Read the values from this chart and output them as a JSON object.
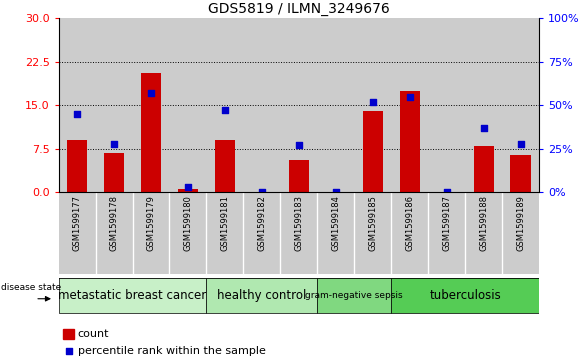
{
  "title": "GDS5819 / ILMN_3249676",
  "samples": [
    "GSM1599177",
    "GSM1599178",
    "GSM1599179",
    "GSM1599180",
    "GSM1599181",
    "GSM1599182",
    "GSM1599183",
    "GSM1599184",
    "GSM1599185",
    "GSM1599186",
    "GSM1599187",
    "GSM1599188",
    "GSM1599189"
  ],
  "counts": [
    9.0,
    6.8,
    20.5,
    0.5,
    9.0,
    0.0,
    5.5,
    0.0,
    14.0,
    17.5,
    0.0,
    8.0,
    6.5
  ],
  "percentiles": [
    45,
    28,
    57,
    3,
    47,
    0,
    27,
    0,
    52,
    55,
    0,
    37,
    28
  ],
  "groups": [
    {
      "name": "metastatic breast cancer",
      "start": 0,
      "end": 4,
      "color": "#c8f0c8"
    },
    {
      "name": "healthy control",
      "start": 4,
      "end": 7,
      "color": "#b0e8b0"
    },
    {
      "name": "gram-negative sepsis",
      "start": 7,
      "end": 9,
      "color": "#80d880"
    },
    {
      "name": "tuberculosis",
      "start": 9,
      "end": 13,
      "color": "#55cc55"
    }
  ],
  "ylim_left": [
    0,
    30
  ],
  "ylim_right": [
    0,
    100
  ],
  "yticks_left": [
    0,
    7.5,
    15,
    22.5,
    30
  ],
  "yticks_right": [
    0,
    25,
    50,
    75,
    100
  ],
  "bar_color": "#cc0000",
  "dot_color": "#0000cc",
  "col_bg_color": "#cccccc",
  "plot_bg_color": "#ffffff",
  "grid_color": "#000000",
  "grid_lw": 0.7
}
